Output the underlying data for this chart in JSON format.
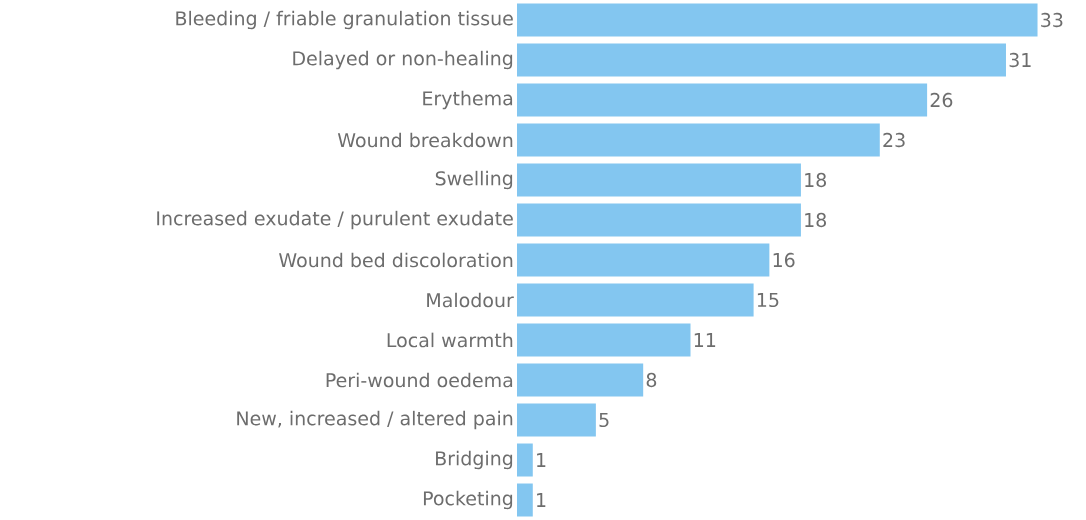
{
  "chart_data": {
    "type": "bar",
    "orientation": "horizontal",
    "categories": [
      "Bleeding / friable granulation tissue",
      "Delayed or non-healing",
      "Erythema",
      "Wound breakdown",
      "Swelling",
      "Increased exudate / purulent exudate",
      "Wound bed discoloration",
      "Malodour",
      "Local warmth",
      "Peri-wound oedema",
      "New, increased / altered pain",
      "Bridging",
      "Pocketing"
    ],
    "values": [
      33,
      31,
      26,
      23,
      18,
      18,
      16,
      15,
      11,
      8,
      5,
      1,
      1
    ],
    "color": "#83c6f0",
    "data_labels": true
  }
}
